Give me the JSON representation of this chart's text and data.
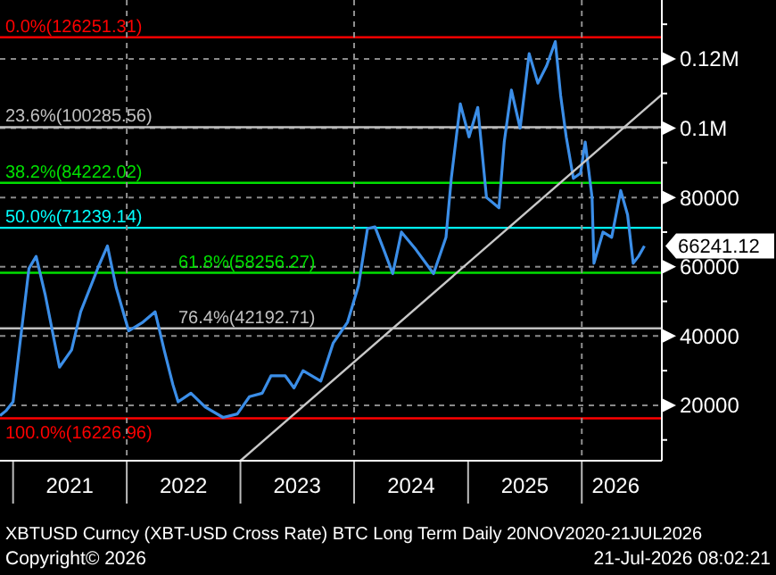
{
  "chart_data": {
    "type": "line",
    "title": "XBTUSD Curncy (XBT-USD Cross Rate) BTC Long Term Daily 20NOV2020-21JUL2026",
    "xlim": [
      "2020-11-20",
      "2026-09-15"
    ],
    "xticks": [
      {
        "value": "2021-01-01",
        "label": null
      },
      {
        "value": "2021-07-02",
        "label": "2021"
      },
      {
        "value": "2022-01-01",
        "label": null
      },
      {
        "value": "2022-07-02",
        "label": "2022"
      },
      {
        "value": "2023-01-01",
        "label": null
      },
      {
        "value": "2023-07-02",
        "label": "2023"
      },
      {
        "value": "2024-01-01",
        "label": null
      },
      {
        "value": "2024-07-02",
        "label": "2024"
      },
      {
        "value": "2025-01-01",
        "label": null
      },
      {
        "value": "2025-07-02",
        "label": "2025"
      },
      {
        "value": "2026-01-01",
        "label": null
      },
      {
        "value": "2026-04-20",
        "label": "2026"
      }
    ],
    "ylim": [
      4000,
      137000
    ],
    "yticks": [
      {
        "value": 10000,
        "label": null
      },
      20000,
      {
        "value": 30000,
        "label": null
      },
      40000,
      {
        "value": 50000,
        "label": null
      },
      60000,
      {
        "value": 70000,
        "label": null
      },
      80000,
      {
        "value": 90000,
        "label": null
      },
      {
        "value": 100000,
        "label": "0.1M"
      },
      {
        "value": 110000,
        "label": null
      },
      {
        "value": 120000,
        "label": "0.12M"
      },
      {
        "value": 130000,
        "label": null
      }
    ],
    "grid": "y",
    "line_style": "solid",
    "series": [
      {
        "color": "#3b8ee8",
        "x": [
          "2020-11-20",
          "2020-12-09",
          "2021-01-01",
          "2021-01-18",
          "2021-02-21",
          "2021-03-16",
          "2021-04-14",
          "2021-05-30",
          "2021-07-08",
          "2021-08-06",
          "2021-10-02",
          "2021-10-31",
          "2021-11-28",
          "2022-01-07",
          "2022-02-22",
          "2022-04-02",
          "2022-05-01",
          "2022-05-29",
          "2022-06-15",
          "2022-07-26",
          "2022-09-10",
          "2022-11-06",
          "2022-12-22",
          "2023-01-30",
          "2023-03-12",
          "2023-04-09",
          "2023-05-25",
          "2023-06-22",
          "2023-07-21",
          "2023-09-16",
          "2023-10-26",
          "2023-12-11",
          "2024-01-15",
          "2024-02-13",
          "2024-03-08",
          "2024-04-05",
          "2024-05-04",
          "2024-06-01",
          "2024-07-17",
          "2024-09-12",
          "2024-10-22",
          "2024-11-08",
          "2024-12-07",
          "2025-01-04",
          "2025-02-01",
          "2025-03-01",
          "2025-04-10",
          "2025-04-27",
          "2025-05-20",
          "2025-06-17",
          "2025-07-16",
          "2025-08-13",
          "2025-09-10",
          "2025-10-08",
          "2025-10-25",
          "2025-11-12",
          "2025-12-05",
          "2025-12-28",
          "2026-01-12",
          "2026-02-03",
          "2026-02-09",
          "2026-03-10",
          "2026-04-07",
          "2026-05-06",
          "2026-05-28",
          "2026-06-15",
          "2026-07-02",
          "2026-07-21"
        ],
        "values": [
          17000,
          18400,
          21000,
          34000,
          59500,
          63000,
          52000,
          31000,
          36000,
          47000,
          60000,
          66000,
          54000,
          41500,
          44000,
          47000,
          36000,
          26000,
          21000,
          23500,
          19500,
          16500,
          17500,
          22500,
          23500,
          28500,
          28500,
          25000,
          30000,
          27000,
          38000,
          44000,
          54500,
          71000,
          71500,
          65000,
          58000,
          70000,
          65000,
          58000,
          68500,
          85500,
          107000,
          97500,
          106000,
          80000,
          77000,
          96000,
          111000,
          100000,
          121500,
          113000,
          118000,
          125000,
          109500,
          97500,
          85500,
          87000,
          96000,
          80000,
          61000,
          70000,
          68500,
          82000,
          75000,
          61000,
          63000,
          66000
        ]
      },
      {
        "color": "#c8c8c8",
        "x": [
          "2023-01-01",
          "2026-09-15"
        ],
        "values": [
          4000,
          109700
        ]
      }
    ],
    "ref_lines": [
      {
        "axis": "y",
        "value": 126251.31,
        "label": "0.0%(126251.31)",
        "color": "#ff0000"
      },
      {
        "axis": "y",
        "value": 100285.56,
        "label": "23.6%(100285.56)",
        "color": "#c0c0c0"
      },
      {
        "axis": "y",
        "value": 84222.02,
        "label": "38.2%(84222.02)",
        "color": "#00e000"
      },
      {
        "axis": "y",
        "value": 71239.14,
        "label": "50.0%(71239.14)",
        "color": "#00ffff"
      },
      {
        "axis": "y",
        "value": 58256.27,
        "label": "61.8%(58256.27)",
        "color": "#00e000"
      },
      {
        "axis": "y",
        "value": 42192.71,
        "label": "76.4%(42192.71)",
        "color": "#c0c0c0"
      },
      {
        "axis": "y",
        "value": 16226.96,
        "label": "100.0%(16226.96)",
        "color": "#ff0000"
      },
      {
        "axis": "x",
        "value": "2022-01-01",
        "color": "#909090",
        "line_style": "dashed"
      },
      {
        "axis": "x",
        "value": "2024-01-01",
        "color": "#909090",
        "line_style": "dashed"
      },
      {
        "axis": "x",
        "value": "2026-01-01",
        "color": "#909090",
        "line_style": "dashed"
      }
    ],
    "annotations": [
      "66241.12",
      "Copyright© 2026",
      "21-Jul-2026 08:02:21"
    ]
  }
}
